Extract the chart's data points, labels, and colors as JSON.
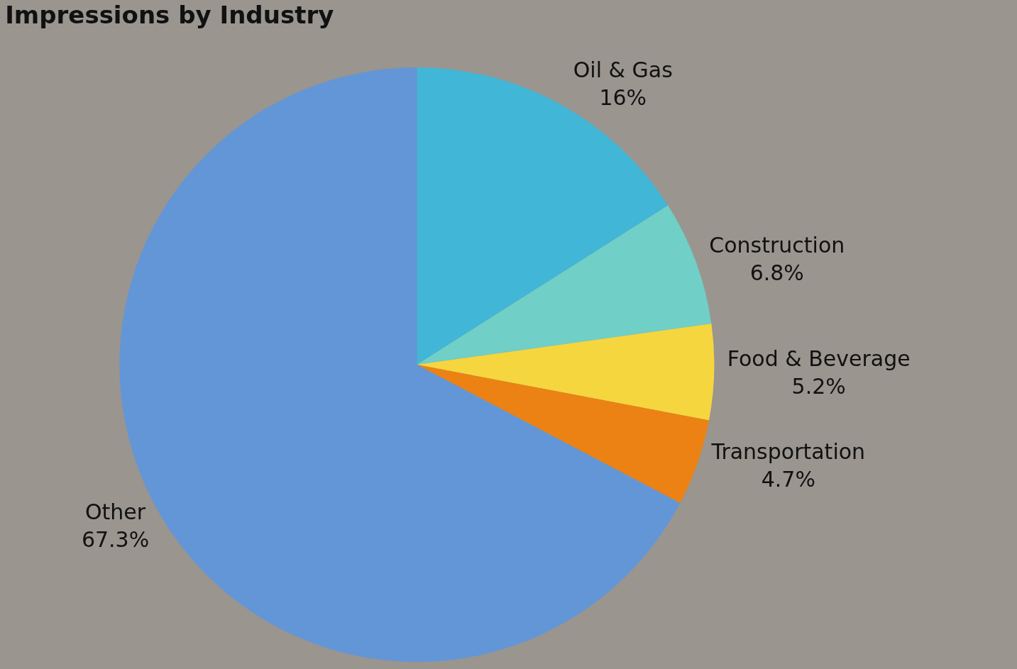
{
  "chart_data": {
    "type": "pie",
    "title": "Impressions by Industry",
    "categories": [
      "Oil & Gas",
      "Construction",
      "Food & Beverage",
      "Transportation",
      "Other"
    ],
    "values": [
      16,
      6.8,
      5.2,
      4.7,
      67.3
    ],
    "value_labels": [
      "16%",
      "6.8%",
      "5.2%",
      "4.7%",
      "67.3%"
    ],
    "colors": [
      "#41b6d6",
      "#70cfc7",
      "#f6d63f",
      "#ec8213",
      "#6396d6"
    ],
    "legend": false
  }
}
